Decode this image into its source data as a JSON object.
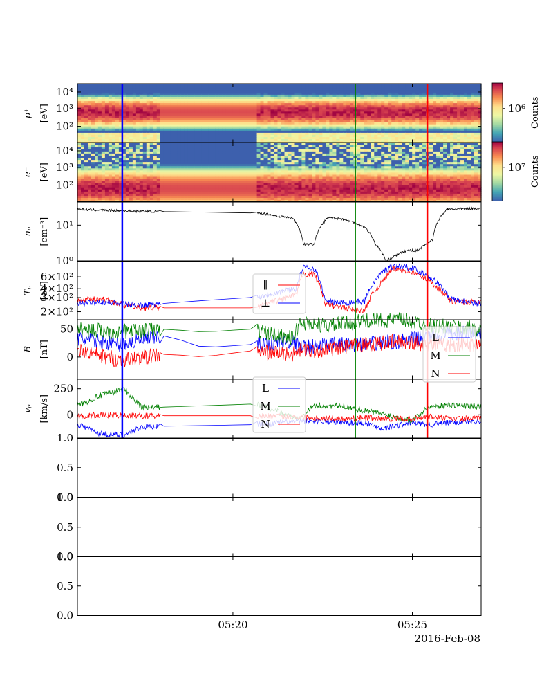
{
  "chart_data": {
    "type": "line",
    "date_label": "2016-Feb-08",
    "x_tick_labels": [
      "05:20",
      "05:25"
    ],
    "time_range": [
      "05:15:40",
      "05:26:55"
    ],
    "colors": {
      "blue_marker": "#0000ff",
      "green_marker": "#008000",
      "red_marker": "#ff0000",
      "L": "#0000ff",
      "M": "#008000",
      "N": "#ff0000",
      "par": "#ff0000",
      "perp": "#0000ff",
      "np": "#000000"
    },
    "vertical_markers": [
      {
        "time": "05:16:55",
        "color": "blue"
      },
      {
        "time": "05:23:25",
        "color": "green"
      },
      {
        "time": "05:25:25",
        "color": "red"
      }
    ],
    "panels": [
      {
        "id": "proton_spectrogram",
        "type": "heatmap",
        "ylabel": [
          "p⁺",
          "[eV]"
        ],
        "yscale": "log",
        "yticks": [
          "10⁴",
          "10³",
          "10²"
        ],
        "colorbar": {
          "label": "Counts",
          "tick": "10⁶"
        },
        "peak_energy_ev": 600
      },
      {
        "id": "electron_spectrogram",
        "type": "heatmap",
        "ylabel": [
          "e⁻",
          "[eV]"
        ],
        "yscale": "log",
        "yticks": [
          "10⁴",
          "10³",
          "10²"
        ],
        "colorbar": {
          "label": "Counts",
          "tick": "10⁷"
        },
        "peak_energy_ev": 60
      },
      {
        "id": "density",
        "ylabel": [
          "nₚ",
          "[cm⁻³]"
        ],
        "yscale": "log",
        "yticks": [
          "10¹",
          "10⁰"
        ],
        "series": [
          {
            "color": "np",
            "points": [
              [
                0,
                28
              ],
              [
                1.5,
                25
              ],
              [
                5.1,
                22
              ],
              [
                5.6,
                18
              ],
              [
                6.0,
                16
              ],
              [
                6.3,
                3
              ],
              [
                6.6,
                3
              ],
              [
                7.0,
                17
              ],
              [
                7.4,
                15
              ],
              [
                7.7,
                12
              ],
              [
                8.0,
                9
              ],
              [
                8.3,
                3
              ],
              [
                8.6,
                1
              ],
              [
                9.2,
                2
              ],
              [
                9.5,
                2
              ],
              [
                9.9,
                4
              ],
              [
                10.3,
                28
              ],
              [
                11.25,
                30
              ]
            ]
          }
        ]
      },
      {
        "id": "temperature",
        "ylabel": [
          "Tₚ",
          "[eV]"
        ],
        "yscale": "log",
        "yticks": [
          "6×10²",
          "4×10²",
          "3×10²",
          "2×10²"
        ],
        "legend": [
          "∥",
          "⊥"
        ],
        "series": [
          {
            "name": "∥",
            "color": "par",
            "points": [
              [
                0,
                260
              ],
              [
                0.6,
                290
              ],
              [
                1.3,
                230
              ],
              [
                1.8,
                210
              ],
              [
                5.0,
                210
              ],
              [
                6.1,
                320
              ],
              [
                6.3,
                650
              ],
              [
                6.6,
                640
              ],
              [
                6.9,
                240
              ],
              [
                7.4,
                210
              ],
              [
                8.0,
                190
              ],
              [
                8.5,
                500
              ],
              [
                8.8,
                780
              ],
              [
                9.3,
                700
              ],
              [
                9.8,
                520
              ],
              [
                10.4,
                260
              ],
              [
                11.25,
                250
              ]
            ]
          },
          {
            "name": "⊥",
            "color": "perp",
            "points": [
              [
                0,
                240
              ],
              [
                0.6,
                260
              ],
              [
                1.3,
                240
              ],
              [
                1.8,
                230
              ],
              [
                5.0,
                300
              ],
              [
                6.1,
                400
              ],
              [
                6.3,
                800
              ],
              [
                6.6,
                780
              ],
              [
                6.9,
                260
              ],
              [
                7.4,
                250
              ],
              [
                8.0,
                260
              ],
              [
                8.5,
                700
              ],
              [
                8.8,
                850
              ],
              [
                9.3,
                800
              ],
              [
                9.8,
                600
              ],
              [
                10.4,
                280
              ],
              [
                11.25,
                240
              ]
            ]
          }
        ]
      },
      {
        "id": "magnetic_field",
        "ylabel": [
          "B",
          "[nT]"
        ],
        "ylim": [
          -35,
          60
        ],
        "yticks": [
          "50",
          "0"
        ],
        "legend": [
          "L",
          "M",
          "N"
        ],
        "series": [
          {
            "name": "L",
            "color": "L",
            "points": [
              [
                0,
                30
              ],
              [
                1.2,
                20
              ],
              [
                2.5,
                35
              ],
              [
                3.5,
                15
              ],
              [
                4.8,
                20
              ],
              [
                6.0,
                25
              ],
              [
                6.2,
                15
              ],
              [
                7.0,
                20
              ],
              [
                8.0,
                20
              ],
              [
                9.0,
                25
              ],
              [
                10.0,
                35
              ],
              [
                11.25,
                40
              ]
            ]
          },
          {
            "name": "M",
            "color": "M",
            "points": [
              [
                0,
                45
              ],
              [
                1.2,
                40
              ],
              [
                2.5,
                45
              ],
              [
                3.5,
                40
              ],
              [
                4.8,
                45
              ],
              [
                6.0,
                30
              ],
              [
                6.2,
                55
              ],
              [
                7.0,
                50
              ],
              [
                8.0,
                58
              ],
              [
                9.0,
                60
              ],
              [
                10.0,
                50
              ],
              [
                11.25,
                45
              ]
            ]
          },
          {
            "name": "N",
            "color": "N",
            "points": [
              [
                0,
                10
              ],
              [
                1.2,
                -5
              ],
              [
                2.5,
                5
              ],
              [
                3.5,
                0
              ],
              [
                4.8,
                10
              ],
              [
                6.0,
                5
              ],
              [
                6.2,
                10
              ],
              [
                7.0,
                12
              ],
              [
                8.0,
                20
              ],
              [
                9.0,
                25
              ],
              [
                10.0,
                20
              ],
              [
                11.25,
                20
              ]
            ]
          }
        ]
      },
      {
        "id": "velocity",
        "ylabel": [
          "vₚ",
          "[km/s]"
        ],
        "ylim": [
          -200,
          400
        ],
        "yticks": [
          "250",
          "0"
        ],
        "legend": [
          "L",
          "M",
          "N"
        ],
        "series": [
          {
            "name": "L",
            "color": "L",
            "points": [
              [
                0,
                -50
              ],
              [
                0.6,
                -150
              ],
              [
                1.3,
                -170
              ],
              [
                1.8,
                -80
              ],
              [
                5.0,
                -60
              ],
              [
                6.1,
                -30
              ],
              [
                6.6,
                -20
              ],
              [
                7.4,
                -40
              ],
              [
                8.0,
                -40
              ],
              [
                8.5,
                -100
              ],
              [
                9.3,
                -40
              ],
              [
                9.8,
                -60
              ],
              [
                10.4,
                -40
              ],
              [
                11.25,
                -20
              ]
            ]
          },
          {
            "name": "M",
            "color": "M",
            "points": [
              [
                0,
                130
              ],
              [
                0.6,
                230
              ],
              [
                1.3,
                300
              ],
              [
                1.8,
                110
              ],
              [
                5.0,
                150
              ],
              [
                6.1,
                0
              ],
              [
                6.6,
                130
              ],
              [
                7.4,
                130
              ],
              [
                8.0,
                80
              ],
              [
                8.5,
                50
              ],
              [
                9.3,
                -20
              ],
              [
                9.8,
                120
              ],
              [
                10.4,
                140
              ],
              [
                11.25,
                120
              ]
            ]
          },
          {
            "name": "N",
            "color": "N",
            "points": [
              [
                0,
                20
              ],
              [
                0.6,
                40
              ],
              [
                1.3,
                30
              ],
              [
                1.8,
                30
              ],
              [
                5.0,
                30
              ],
              [
                6.1,
                20
              ],
              [
                6.6,
                10
              ],
              [
                7.4,
                0
              ],
              [
                8.0,
                10
              ],
              [
                8.5,
                0
              ],
              [
                9.3,
                0
              ],
              [
                9.8,
                20
              ],
              [
                10.4,
                0
              ],
              [
                11.25,
                0
              ]
            ]
          }
        ]
      },
      {
        "id": "empty_1",
        "ylim": [
          0,
          1
        ],
        "yticks": [
          "1.0",
          "0.5",
          "0.0"
        ]
      },
      {
        "id": "empty_2",
        "ylim": [
          0,
          1
        ],
        "yticks": [
          "1.0",
          "0.5",
          "0.0"
        ]
      },
      {
        "id": "empty_3",
        "ylim": [
          0,
          1
        ],
        "yticks": [
          "1.0",
          "0.5",
          "0.0"
        ]
      }
    ]
  }
}
